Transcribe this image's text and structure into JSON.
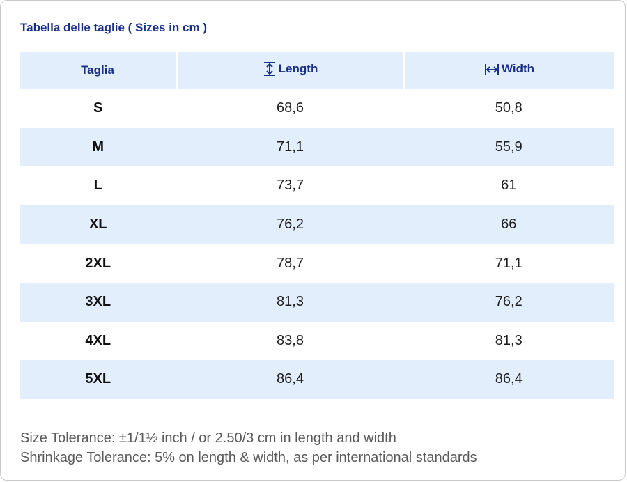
{
  "title": "Tabella delle taglie ( Sizes in cm )",
  "table": {
    "headers": {
      "size": "Taglia",
      "length": "Length",
      "width": "Width",
      "length_icon": "vertical-measure-icon",
      "width_icon": "horizontal-measure-icon"
    },
    "rows": [
      {
        "size": "S",
        "length": "68,6",
        "width": "50,8"
      },
      {
        "size": "M",
        "length": "71,1",
        "width": "55,9"
      },
      {
        "size": "L",
        "length": "73,7",
        "width": "61"
      },
      {
        "size": "XL",
        "length": "76,2",
        "width": "66"
      },
      {
        "size": "2XL",
        "length": "78,7",
        "width": "71,1"
      },
      {
        "size": "3XL",
        "length": "81,3",
        "width": "76,2"
      },
      {
        "size": "4XL",
        "length": "83,8",
        "width": "81,3"
      },
      {
        "size": "5XL",
        "length": "86,4",
        "width": "86,4"
      }
    ]
  },
  "notes": {
    "size_tolerance": "Size Tolerance: ±1/1½ inch / or 2.50/3 cm in length and width",
    "shrinkage_tolerance": "Shrinkage Tolerance: 5% on length & width, as per international standards"
  },
  "colors": {
    "accent": "#1a2f86",
    "row_stripe": "#e3eefc",
    "note_text": "#5a5a5a"
  }
}
